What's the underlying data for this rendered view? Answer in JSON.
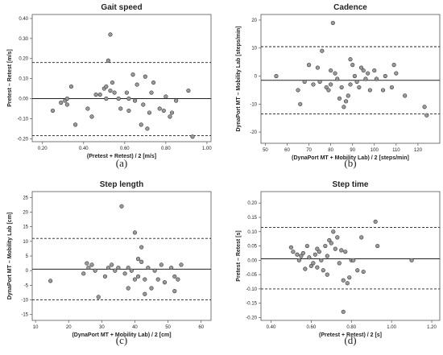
{
  "chart_data": [
    {
      "type": "scatter",
      "title": "Gait speed",
      "xlabel": "(Pretest + Retest) / 2 [m/s]",
      "ylabel": "Pretest – Retest [m/s]",
      "xlim": [
        0.15,
        1.02
      ],
      "ylim": [
        -0.215,
        0.42
      ],
      "xticks": [
        0.2,
        0.4,
        0.6,
        0.8,
        1.0
      ],
      "xtick_labels": [
        "0.20",
        "0.40",
        "0.60",
        "0.80",
        "1.00"
      ],
      "yticks": [
        -0.2,
        -0.1,
        0.0,
        0.1,
        0.2,
        0.3,
        0.4
      ],
      "ytick_labels": [
        "-0.20",
        "-0.10",
        "0.00",
        "0.10",
        "0.20",
        "0.30",
        "0.40"
      ],
      "mean_line": 0.0,
      "limits_of_agreement": [
        -0.185,
        0.18
      ],
      "panel_label": "(a)",
      "points": [
        [
          0.25,
          -0.06
        ],
        [
          0.29,
          -0.02
        ],
        [
          0.31,
          -0.01
        ],
        [
          0.32,
          -0.03
        ],
        [
          0.32,
          0.0
        ],
        [
          0.34,
          0.06
        ],
        [
          0.36,
          -0.13
        ],
        [
          0.42,
          -0.05
        ],
        [
          0.44,
          -0.09
        ],
        [
          0.46,
          0.02
        ],
        [
          0.48,
          0.02
        ],
        [
          0.5,
          0.05
        ],
        [
          0.51,
          0.0
        ],
        [
          0.51,
          0.06
        ],
        [
          0.52,
          0.19
        ],
        [
          0.53,
          0.04
        ],
        [
          0.53,
          0.32
        ],
        [
          0.54,
          0.08
        ],
        [
          0.55,
          0.03
        ],
        [
          0.57,
          0.0
        ],
        [
          0.58,
          -0.05
        ],
        [
          0.61,
          0.03
        ],
        [
          0.62,
          -0.06
        ],
        [
          0.62,
          0.0
        ],
        [
          0.64,
          0.12
        ],
        [
          0.65,
          -0.01
        ],
        [
          0.66,
          0.07
        ],
        [
          0.68,
          -0.13
        ],
        [
          0.69,
          -0.03
        ],
        [
          0.7,
          0.11
        ],
        [
          0.71,
          -0.15
        ],
        [
          0.72,
          -0.07
        ],
        [
          0.73,
          0.03
        ],
        [
          0.74,
          0.08
        ],
        [
          0.77,
          -0.05
        ],
        [
          0.79,
          -0.06
        ],
        [
          0.8,
          0.01
        ],
        [
          0.82,
          -0.09
        ],
        [
          0.83,
          -0.07
        ],
        [
          0.85,
          -0.01
        ],
        [
          0.91,
          0.04
        ],
        [
          0.93,
          -0.19
        ]
      ]
    },
    {
      "type": "scatter",
      "title": "Cadence",
      "xlabel": "(DynaPort MT + Mobility Lab) / 2 [steps/min]",
      "ylabel": "DynaPort MT – Mobility Lab [steps/min]",
      "xlim": [
        48,
        130
      ],
      "ylim": [
        -24,
        22
      ],
      "xticks": [
        50,
        60,
        70,
        80,
        90,
        100,
        110,
        120
      ],
      "xtick_labels": [
        "50",
        "60",
        "70",
        "80",
        "90",
        "100",
        "110",
        "120"
      ],
      "yticks": [
        -20,
        -10,
        0,
        10,
        20
      ],
      "ytick_labels": [
        "-20",
        "-10",
        "0",
        "10",
        "20"
      ],
      "mean_line": -1.5,
      "limits_of_agreement": [
        -13.5,
        10.5
      ],
      "panel_label": "(b)",
      "points": [
        [
          55,
          0
        ],
        [
          65,
          -5
        ],
        [
          66,
          -10
        ],
        [
          68,
          -2
        ],
        [
          70,
          4
        ],
        [
          72,
          -3
        ],
        [
          74,
          3
        ],
        [
          75,
          -2
        ],
        [
          76,
          9
        ],
        [
          78,
          -4
        ],
        [
          79,
          -5
        ],
        [
          80,
          2
        ],
        [
          80,
          -3
        ],
        [
          81,
          19
        ],
        [
          82,
          1
        ],
        [
          83,
          -1
        ],
        [
          84,
          -8
        ],
        [
          85,
          -4
        ],
        [
          86,
          -11
        ],
        [
          87,
          -9
        ],
        [
          88,
          -7
        ],
        [
          89,
          6
        ],
        [
          89,
          -3
        ],
        [
          90,
          4
        ],
        [
          91,
          0
        ],
        [
          92,
          -2
        ],
        [
          93,
          -4
        ],
        [
          94,
          3
        ],
        [
          95,
          2
        ],
        [
          96,
          -1
        ],
        [
          97,
          1
        ],
        [
          98,
          -5
        ],
        [
          100,
          2
        ],
        [
          101,
          -1
        ],
        [
          104,
          -5
        ],
        [
          105,
          0
        ],
        [
          108,
          -4
        ],
        [
          109,
          4
        ],
        [
          110,
          1
        ],
        [
          114,
          -7
        ],
        [
          123,
          -11
        ],
        [
          124,
          -14
        ]
      ]
    },
    {
      "type": "scatter",
      "title": "Step length",
      "xlabel": "(DynaPort MT + Mobility Lab) / 2 [cm]",
      "ylabel": "DynaPort MT – Mobility Lab [cm]",
      "xlim": [
        9,
        63
      ],
      "ylim": [
        -17,
        27
      ],
      "xticks": [
        10,
        20,
        30,
        40,
        50,
        60
      ],
      "xtick_labels": [
        "10",
        "20",
        "30",
        "40",
        "50",
        "60"
      ],
      "yticks": [
        -15,
        -10,
        -5,
        0,
        5,
        10,
        15,
        20,
        25
      ],
      "ytick_labels": [
        "-15",
        "-10",
        "-5",
        "0",
        "5",
        "10",
        "15",
        "20",
        "25"
      ],
      "mean_line": 0.5,
      "limits_of_agreement": [
        -10,
        11
      ],
      "panel_label": "(c)",
      "points": [
        [
          14.5,
          -3.5
        ],
        [
          24.5,
          -1
        ],
        [
          25.5,
          2.5
        ],
        [
          26,
          1
        ],
        [
          27,
          2
        ],
        [
          28,
          0
        ],
        [
          29,
          -9
        ],
        [
          31,
          -2
        ],
        [
          32,
          1
        ],
        [
          33,
          2
        ],
        [
          34,
          0
        ],
        [
          35,
          1
        ],
        [
          36,
          22
        ],
        [
          37,
          -1
        ],
        [
          38,
          -6
        ],
        [
          38,
          1
        ],
        [
          39,
          0
        ],
        [
          40,
          13
        ],
        [
          40,
          -3
        ],
        [
          41,
          4
        ],
        [
          41,
          -2
        ],
        [
          42,
          3
        ],
        [
          42,
          8
        ],
        [
          43,
          -8
        ],
        [
          43,
          -3
        ],
        [
          44,
          1
        ],
        [
          45,
          -6
        ],
        [
          46,
          0
        ],
        [
          47,
          -3
        ],
        [
          48,
          2
        ],
        [
          49,
          -4
        ],
        [
          51,
          1
        ],
        [
          52,
          -2
        ],
        [
          52,
          -7
        ],
        [
          53,
          -3
        ],
        [
          54,
          2
        ]
      ]
    },
    {
      "type": "scatter",
      "title": "Step time",
      "xlabel": "(Pretest + Retest) / 2 [s]",
      "ylabel": "Pretest – Retest [s]",
      "xlim": [
        0.35,
        1.24
      ],
      "ylim": [
        -0.21,
        0.24
      ],
      "xticks": [
        0.4,
        0.6,
        0.8,
        1.0,
        1.2
      ],
      "xtick_labels": [
        "0.40",
        "0.60",
        "0.80",
        "1.00",
        "1.20"
      ],
      "yticks": [
        -0.2,
        -0.15,
        -0.1,
        -0.05,
        0.0,
        0.05,
        0.1,
        0.15,
        0.2
      ],
      "ytick_labels": [
        "-0.20",
        "-0.15",
        "-0.10",
        "-0.05",
        "0.00",
        "0.05",
        "0.10",
        "0.15",
        "0.20"
      ],
      "mean_line": 0.005,
      "limits_of_agreement": [
        -0.1,
        0.115
      ],
      "panel_label": "(d)",
      "points": [
        [
          0.5,
          0.045
        ],
        [
          0.51,
          0.03
        ],
        [
          0.53,
          0.02
        ],
        [
          0.54,
          0.0
        ],
        [
          0.55,
          0.015
        ],
        [
          0.56,
          0.025
        ],
        [
          0.57,
          -0.03
        ],
        [
          0.58,
          0.05
        ],
        [
          0.59,
          0.01
        ],
        [
          0.6,
          -0.02
        ],
        [
          0.61,
          -0.01
        ],
        [
          0.62,
          0.02
        ],
        [
          0.63,
          0.04
        ],
        [
          0.63,
          -0.025
        ],
        [
          0.64,
          0.03
        ],
        [
          0.65,
          0.0
        ],
        [
          0.66,
          -0.035
        ],
        [
          0.67,
          0.05
        ],
        [
          0.68,
          -0.05
        ],
        [
          0.68,
          0.015
        ],
        [
          0.69,
          0.07
        ],
        [
          0.7,
          0.06
        ],
        [
          0.71,
          0.1
        ],
        [
          0.72,
          0.04
        ],
        [
          0.73,
          0.08
        ],
        [
          0.74,
          -0.01
        ],
        [
          0.75,
          0.035
        ],
        [
          0.76,
          -0.07
        ],
        [
          0.76,
          -0.18
        ],
        [
          0.77,
          0.03
        ],
        [
          0.78,
          -0.08
        ],
        [
          0.79,
          -0.06
        ],
        [
          0.8,
          0.0
        ],
        [
          0.81,
          0.0
        ],
        [
          0.83,
          -0.035
        ],
        [
          0.85,
          0.08
        ],
        [
          0.86,
          -0.04
        ],
        [
          0.92,
          0.135
        ],
        [
          0.93,
          0.05
        ],
        [
          1.1,
          0.0
        ]
      ]
    }
  ]
}
